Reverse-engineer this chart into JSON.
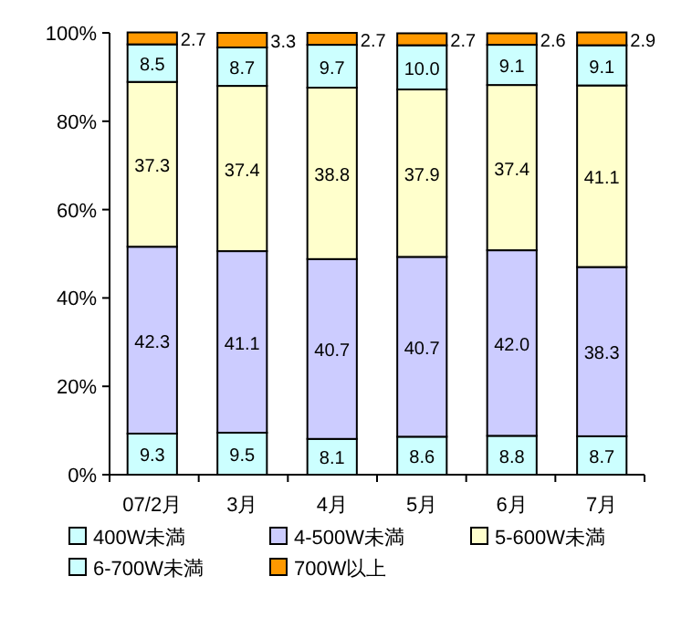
{
  "chart_data": {
    "type": "bar",
    "stacked": true,
    "categories": [
      "07/2月",
      "3月",
      "4月",
      "5月",
      "6月",
      "7月"
    ],
    "series": [
      {
        "name": "400W未満",
        "color": "#ccffff",
        "values": [
          9.3,
          9.5,
          8.1,
          8.6,
          8.8,
          8.7
        ],
        "value_labels": [
          "9.3",
          "9.5",
          "8.1",
          "8.6",
          "8.8",
          "8.7"
        ]
      },
      {
        "name": "4-500W未満",
        "color": "#ccccff",
        "values": [
          42.3,
          41.1,
          40.7,
          40.7,
          42.0,
          38.3
        ],
        "value_labels": [
          "42.3",
          "41.1",
          "40.7",
          "40.7",
          "42.0",
          "38.3"
        ]
      },
      {
        "name": "5-600W未満",
        "color": "#ffffcc",
        "values": [
          37.3,
          37.4,
          38.8,
          37.9,
          37.4,
          41.1
        ],
        "value_labels": [
          "37.3",
          "37.4",
          "38.8",
          "37.9",
          "37.4",
          "41.1"
        ]
      },
      {
        "name": "6-700W未満",
        "color": "#ccffff",
        "values": [
          8.5,
          8.7,
          9.7,
          10.0,
          9.1,
          9.1
        ],
        "value_labels": [
          "8.5",
          "8.7",
          "9.7",
          "10.0",
          "9.1",
          "9.1"
        ]
      },
      {
        "name": "700W以上",
        "color": "#ff9900",
        "values": [
          2.7,
          3.3,
          2.7,
          2.7,
          2.6,
          2.9
        ],
        "value_labels": [
          "2.7",
          "3.3",
          "2.7",
          "2.7",
          "2.6",
          "2.9"
        ]
      }
    ],
    "ylim": [
      0,
      100
    ],
    "yticks": [
      {
        "value": 0,
        "label": "0%"
      },
      {
        "value": 20,
        "label": "20%"
      },
      {
        "value": 40,
        "label": "40%"
      },
      {
        "value": 60,
        "label": "60%"
      },
      {
        "value": 80,
        "label": "80%"
      },
      {
        "value": 100,
        "label": "100%"
      }
    ],
    "legend": "bottom",
    "grid": false
  }
}
